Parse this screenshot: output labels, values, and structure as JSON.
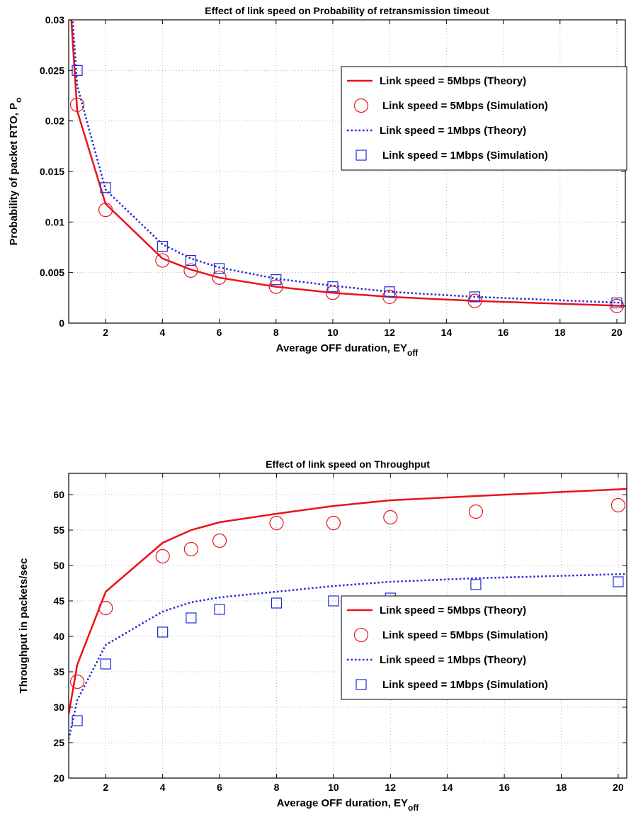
{
  "chart_data": [
    {
      "type": "line",
      "title": "Effect of link speed on Probability of retransmission timeout",
      "xlabel_main": "Average OFF duration, EY",
      "xlabel_sub": "off",
      "ylabel_main": "Probability of packet RTO, P",
      "ylabel_sub": "o",
      "xlim": [
        0.7,
        20.3
      ],
      "ylim": [
        0,
        0.03
      ],
      "xticks": [
        2,
        4,
        6,
        8,
        10,
        12,
        14,
        16,
        18,
        20
      ],
      "yticks": [
        0,
        0.005,
        0.01,
        0.015,
        0.02,
        0.025,
        0.03
      ],
      "yticklabels": [
        "0",
        "0.005",
        "0.01",
        "0.015",
        "0.02",
        "0.025",
        "0.03"
      ],
      "grid": true,
      "legend_position": "top-right",
      "series": [
        {
          "name": "Link speed = 5Mbps (Theory)",
          "style": "line-solid",
          "color": "#e8141a",
          "x": [
            0.7,
            1,
            2,
            4,
            5,
            6,
            8,
            10,
            12,
            15,
            20.3
          ],
          "y": [
            0.034,
            0.021,
            0.0118,
            0.0064,
            0.0053,
            0.0045,
            0.0036,
            0.003,
            0.0026,
            0.0022,
            0.0017
          ]
        },
        {
          "name": "Link speed = 5Mbps (Simulation)",
          "style": "marker-circle",
          "color": "#e8141a",
          "x": [
            1,
            2,
            4,
            5,
            6,
            8,
            10,
            12,
            15,
            20
          ],
          "y": [
            0.0216,
            0.0112,
            0.0062,
            0.0052,
            0.0045,
            0.0036,
            0.003,
            0.0026,
            0.0022,
            0.0017
          ]
        },
        {
          "name": "Link speed = 1Mbps (Theory)",
          "style": "line-dotted",
          "color": "#1f2ad6",
          "x": [
            0.7,
            1,
            2,
            4,
            5,
            6,
            8,
            10,
            12,
            15,
            20.3
          ],
          "y": [
            0.036,
            0.0235,
            0.0132,
            0.0078,
            0.0064,
            0.0055,
            0.0044,
            0.0037,
            0.0031,
            0.0026,
            0.002
          ]
        },
        {
          "name": "Link speed = 1Mbps (Simulation)",
          "style": "marker-square",
          "color": "#1f2ad6",
          "x": [
            1,
            2,
            4,
            5,
            6,
            8,
            10,
            12,
            15,
            20
          ],
          "y": [
            0.025,
            0.0134,
            0.0076,
            0.0062,
            0.0054,
            0.0043,
            0.0036,
            0.0031,
            0.0026,
            0.002
          ]
        }
      ]
    },
    {
      "type": "line",
      "title": "Effect of link speed on Throughput",
      "xlabel_main": "Average OFF duration, EY",
      "xlabel_sub": "off",
      "ylabel_main": "Throughput in packets/sec",
      "ylabel_sub": "",
      "xlim": [
        0.7,
        20.3
      ],
      "ylim": [
        20,
        63
      ],
      "xticks": [
        2,
        4,
        6,
        8,
        10,
        12,
        14,
        16,
        18,
        20
      ],
      "yticks": [
        20,
        25,
        30,
        35,
        40,
        45,
        50,
        55,
        60
      ],
      "yticklabels": [
        "20",
        "25",
        "30",
        "35",
        "40",
        "45",
        "50",
        "55",
        "60"
      ],
      "grid": true,
      "legend_position": "bottom-right",
      "series": [
        {
          "name": "Link speed = 5Mbps (Theory)",
          "style": "line-solid",
          "color": "#e8141a",
          "x": [
            0.7,
            1,
            2,
            4,
            5,
            6,
            8,
            10,
            12,
            15,
            20.3
          ],
          "y": [
            29,
            36,
            46.3,
            53.2,
            55,
            56.1,
            57.3,
            58.4,
            59.2,
            59.8,
            60.8
          ]
        },
        {
          "name": "Link speed = 5Mbps (Simulation)",
          "style": "marker-circle",
          "color": "#e8141a",
          "x": [
            1,
            2,
            4,
            5,
            6,
            8,
            10,
            12,
            15,
            20
          ],
          "y": [
            33.6,
            44,
            51.3,
            52.3,
            53.5,
            56,
            56,
            56.8,
            57.6,
            58.5
          ]
        },
        {
          "name": "Link speed = 1Mbps (Theory)",
          "style": "line-dotted",
          "color": "#1f2ad6",
          "x": [
            0.7,
            1,
            2,
            4,
            5,
            6,
            8,
            10,
            12,
            15,
            20.3
          ],
          "y": [
            25.5,
            31,
            38.8,
            43.5,
            44.8,
            45.5,
            46.3,
            47.1,
            47.7,
            48.2,
            48.8
          ]
        },
        {
          "name": "Link speed = 1Mbps (Simulation)",
          "style": "marker-square",
          "color": "#1f2ad6",
          "x": [
            1,
            2,
            4,
            5,
            6,
            8,
            10,
            12,
            15,
            20
          ],
          "y": [
            28.1,
            36.1,
            40.6,
            42.6,
            43.8,
            44.7,
            45,
            45.4,
            47.3,
            47.7
          ]
        }
      ]
    }
  ]
}
